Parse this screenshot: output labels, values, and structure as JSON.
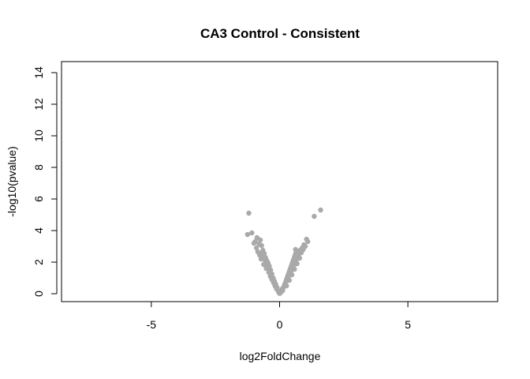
{
  "chart_data": {
    "type": "scatter",
    "title": "CA3 Control - Consistent",
    "xlabel": "log2FoldChange",
    "ylabel": "-log10(pvalue)",
    "xlim": [
      -8.5,
      8.5
    ],
    "ylim": [
      -0.5,
      14.7
    ],
    "x_ticks": [
      -5,
      0,
      5
    ],
    "x_tick_labels": [
      "-5",
      "0",
      "5"
    ],
    "y_ticks": [
      0,
      2,
      4,
      6,
      8,
      10,
      12,
      14
    ],
    "y_tick_labels": [
      "0",
      "2",
      "4",
      "6",
      "8",
      "10",
      "12",
      "14"
    ],
    "point_color": "#a9a9a9",
    "grid": false,
    "legend": "none",
    "series": [
      {
        "name": "genes",
        "points": [
          [
            -1.2,
            5.1
          ],
          [
            1.6,
            5.3
          ],
          [
            1.35,
            4.9
          ],
          [
            -1.08,
            3.85
          ],
          [
            -1.25,
            3.75
          ],
          [
            -0.88,
            3.55
          ],
          [
            -0.75,
            3.4
          ],
          [
            -0.95,
            3.3
          ],
          [
            -1.0,
            3.2
          ],
          [
            -0.8,
            3.15
          ],
          [
            -0.7,
            3.05
          ],
          [
            -0.9,
            2.9
          ],
          [
            -0.65,
            2.75
          ],
          [
            -0.85,
            2.65
          ],
          [
            -0.6,
            2.55
          ],
          [
            -0.78,
            2.45
          ],
          [
            -0.55,
            2.3
          ],
          [
            -0.72,
            2.2
          ],
          [
            -0.5,
            2.1
          ],
          [
            -0.45,
            1.95
          ],
          [
            -0.62,
            1.85
          ],
          [
            -0.4,
            1.75
          ],
          [
            -0.52,
            1.6
          ],
          [
            -0.35,
            1.5
          ],
          [
            -0.42,
            1.35
          ],
          [
            -0.3,
            1.25
          ],
          [
            -0.36,
            1.1
          ],
          [
            -0.25,
            1.0
          ],
          [
            -0.3,
            0.9
          ],
          [
            -0.2,
            0.8
          ],
          [
            -0.24,
            0.7
          ],
          [
            -0.15,
            0.6
          ],
          [
            -0.18,
            0.5
          ],
          [
            -0.1,
            0.4
          ],
          [
            -0.12,
            0.3
          ],
          [
            -0.06,
            0.2
          ],
          [
            -0.04,
            0.1
          ],
          [
            0.0,
            0.02
          ],
          [
            1.05,
            3.45
          ],
          [
            1.1,
            3.3
          ],
          [
            0.95,
            3.1
          ],
          [
            1.0,
            3.0
          ],
          [
            0.88,
            2.9
          ],
          [
            0.92,
            2.8
          ],
          [
            0.8,
            2.7
          ],
          [
            0.62,
            2.8
          ],
          [
            0.85,
            2.6
          ],
          [
            0.75,
            2.5
          ],
          [
            0.7,
            2.35
          ],
          [
            0.78,
            2.25
          ],
          [
            0.65,
            2.15
          ],
          [
            0.6,
            2.0
          ],
          [
            0.68,
            1.9
          ],
          [
            0.55,
            1.8
          ],
          [
            0.5,
            1.65
          ],
          [
            0.58,
            1.55
          ],
          [
            0.45,
            1.45
          ],
          [
            0.4,
            1.3
          ],
          [
            0.48,
            1.2
          ],
          [
            0.35,
            1.1
          ],
          [
            0.3,
            0.95
          ],
          [
            0.38,
            0.85
          ],
          [
            0.25,
            0.75
          ],
          [
            0.2,
            0.6
          ],
          [
            0.27,
            0.5
          ],
          [
            0.15,
            0.4
          ],
          [
            0.1,
            0.3
          ],
          [
            0.12,
            0.2
          ],
          [
            0.06,
            0.12
          ],
          [
            0.03,
            0.05
          ]
        ]
      }
    ]
  }
}
